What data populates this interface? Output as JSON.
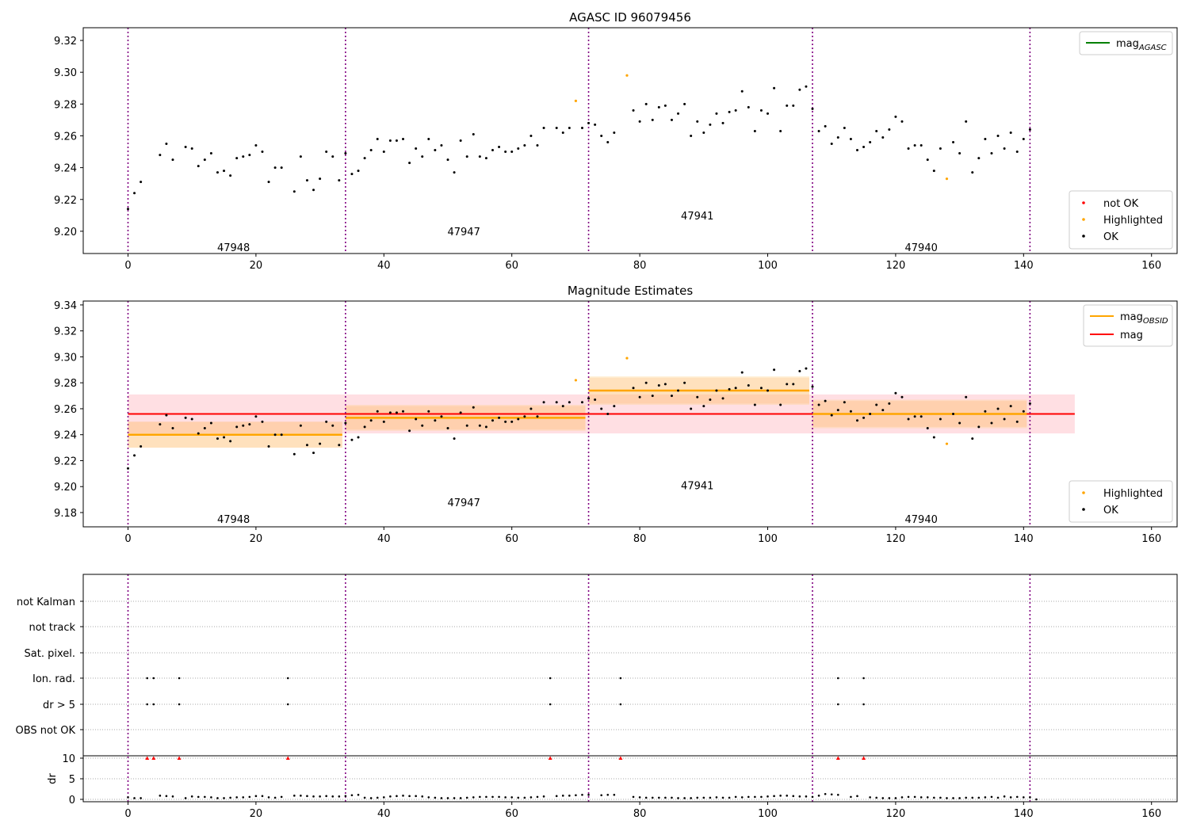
{
  "figure": {
    "title_top": "AGASC ID 96079456",
    "title_mid": "Magnitude Estimates"
  },
  "chart_data": [
    {
      "type": "scatter",
      "title": "AGASC ID 96079456",
      "xlim": [
        -7,
        164
      ],
      "ylim": [
        9.186,
        9.328
      ],
      "x_ticks": [
        0,
        20,
        40,
        60,
        80,
        100,
        120,
        140,
        160
      ],
      "y_ticks": [
        9.2,
        9.22,
        9.24,
        9.26,
        9.28,
        9.3,
        9.32
      ],
      "obsid_boundaries": [
        0,
        34,
        72,
        107,
        141
      ],
      "obsid_labels": [
        {
          "x": 16.5,
          "y": 9.19,
          "text": "47948"
        },
        {
          "x": 52.5,
          "y": 9.2,
          "text": "47947"
        },
        {
          "x": 89,
          "y": 9.21,
          "text": "47941"
        },
        {
          "x": 124,
          "y": 9.19,
          "text": "47940"
        }
      ],
      "legend_lines": [
        {
          "name": "mag",
          "sub": "AGASC",
          "color": "#008000"
        }
      ],
      "legend_points": [
        {
          "name": "not OK",
          "color": "#ff0000"
        },
        {
          "name": "Highlighted",
          "color": "#ffa500"
        },
        {
          "name": "OK",
          "color": "#000000"
        }
      ],
      "highlighted": [
        [
          70,
          9.282
        ],
        [
          78,
          9.298
        ],
        [
          128,
          9.233
        ]
      ]
    },
    {
      "type": "scatter",
      "title": "Magnitude Estimates",
      "xlim": [
        -7,
        164
      ],
      "ylim": [
        9.169,
        9.343
      ],
      "x_ticks": [
        0,
        20,
        40,
        60,
        80,
        100,
        120,
        140,
        160
      ],
      "y_ticks": [
        9.18,
        9.2,
        9.22,
        9.24,
        9.26,
        9.28,
        9.3,
        9.32,
        9.34
      ],
      "obsid_boundaries": [
        0,
        34,
        72,
        107,
        141
      ],
      "obsid_labels": [
        {
          "x": 16.5,
          "y": 9.175,
          "text": "47948"
        },
        {
          "x": 52.5,
          "y": 9.188,
          "text": "47947"
        },
        {
          "x": 89,
          "y": 9.201,
          "text": "47941"
        },
        {
          "x": 124,
          "y": 9.175,
          "text": "47940"
        }
      ],
      "mag": {
        "value": 9.256,
        "x0": 0,
        "x1": 148,
        "band": [
          9.241,
          9.271
        ],
        "color": "#ff0000"
      },
      "obsid_mags": [
        {
          "x0": 0,
          "x1": 33.5,
          "value": 9.24,
          "band_lo": [
            9.23,
            9.25
          ],
          "band_hi": [
            9.23,
            9.25
          ]
        },
        {
          "x0": 34,
          "x1": 71.5,
          "value": 9.253,
          "band_lo": [
            9.243,
            9.263
          ],
          "band_hi": [
            9.244,
            9.262
          ]
        },
        {
          "x0": 72,
          "x1": 106.5,
          "value": 9.274,
          "band_lo": [
            9.263,
            9.285
          ],
          "band_hi": [
            9.264,
            9.284
          ]
        },
        {
          "x0": 107,
          "x1": 140.5,
          "value": 9.256,
          "band_lo": [
            9.245,
            9.267
          ],
          "band_hi": [
            9.246,
            9.266
          ]
        }
      ],
      "legend_lines": [
        {
          "name": "mag",
          "sub": "OBSID",
          "color": "#ffa500"
        },
        {
          "name": "mag",
          "sub": "",
          "color": "#ff0000"
        }
      ],
      "legend_points": [
        {
          "name": "Highlighted",
          "color": "#ffa500"
        },
        {
          "name": "OK",
          "color": "#000000"
        }
      ],
      "highlighted": [
        [
          70,
          9.282
        ],
        [
          78,
          9.299
        ],
        [
          128,
          9.233
        ]
      ]
    },
    {
      "type": "scatter",
      "title": "",
      "flag_labels": [
        "OBS not OK",
        "dr > 5",
        "Ion. rad.",
        "Sat. pixel.",
        "not track",
        "not Kalman"
      ],
      "flag_points": {
        "dr > 5": [
          3,
          4,
          8,
          25,
          66,
          77,
          111,
          115
        ],
        "Ion. rad.": [
          3,
          4,
          8,
          25,
          66,
          77,
          111,
          115
        ]
      },
      "dr_ylabel": "dr",
      "dr_ticks": [
        0,
        5,
        10
      ],
      "dr_clip_markers": [
        3,
        4,
        8,
        25,
        66,
        77,
        111,
        115
      ],
      "x_ticks": [
        0,
        20,
        40,
        60,
        80,
        100,
        120,
        140,
        160
      ],
      "obsid_boundaries": [
        0,
        34,
        72,
        107,
        141
      ]
    }
  ],
  "series": {
    "mags": [
      9.214,
      9.224,
      9.231,
      null,
      null,
      9.248,
      9.255,
      9.245,
      null,
      9.253,
      9.252,
      9.241,
      9.245,
      9.249,
      9.237,
      9.238,
      9.235,
      9.246,
      9.247,
      9.248,
      9.254,
      9.25,
      9.231,
      9.24,
      9.24,
      null,
      9.225,
      9.247,
      9.232,
      9.226,
      9.233,
      9.25,
      9.247,
      9.232,
      9.249,
      9.236,
      9.238,
      9.246,
      9.251,
      9.258,
      9.25,
      9.257,
      9.257,
      9.258,
      9.243,
      9.252,
      9.247,
      9.258,
      9.251,
      9.254,
      9.245,
      9.237,
      9.257,
      9.247,
      9.261,
      9.247,
      9.246,
      9.251,
      9.253,
      9.25,
      9.25,
      9.252,
      9.254,
      9.26,
      9.254,
      9.265,
      null,
      9.265,
      9.262,
      9.265,
      null,
      9.265,
      9.268,
      9.267,
      9.26,
      9.256,
      9.262,
      null,
      null,
      9.276,
      9.269,
      9.28,
      9.27,
      9.278,
      9.279,
      9.27,
      9.274,
      9.28,
      9.26,
      9.269,
      9.262,
      9.267,
      9.274,
      9.268,
      9.275,
      9.276,
      9.288,
      9.278,
      9.263,
      9.276,
      9.274,
      9.29,
      9.263,
      9.279,
      9.279,
      9.289,
      9.291,
      9.277,
      9.263,
      9.266,
      9.255,
      9.259,
      9.265,
      9.258,
      9.251,
      9.253,
      9.256,
      9.263,
      9.259,
      9.264,
      9.272,
      9.269,
      9.252,
      9.254,
      9.254,
      9.245,
      9.238,
      9.252,
      null,
      9.256,
      9.249,
      9.269,
      9.237,
      9.246,
      9.258,
      9.249,
      9.26,
      9.252,
      9.262,
      9.25,
      9.258,
      9.264
    ],
    "dr": [
      0.5,
      0.3,
      0.3,
      null,
      null,
      0.9,
      0.8,
      0.7,
      null,
      0.3,
      0.7,
      0.6,
      0.6,
      0.5,
      0.3,
      0.3,
      0.4,
      0.5,
      0.5,
      0.6,
      0.8,
      0.8,
      0.5,
      0.4,
      0.6,
      null,
      0.9,
      0.9,
      0.8,
      0.7,
      0.7,
      0.8,
      0.7,
      0.7,
      0.8,
      1.0,
      1.1,
      0.4,
      0.3,
      0.4,
      0.5,
      0.7,
      0.8,
      0.9,
      0.8,
      0.8,
      0.7,
      0.5,
      0.4,
      0.3,
      0.3,
      0.3,
      0.3,
      0.4,
      0.5,
      0.6,
      0.6,
      0.6,
      0.6,
      0.5,
      0.5,
      0.4,
      0.4,
      0.5,
      0.6,
      0.7,
      null,
      0.8,
      0.9,
      0.9,
      1.0,
      1.1,
      1.1,
      null,
      1.0,
      1.1,
      1.1,
      null,
      null,
      0.6,
      0.5,
      0.4,
      0.4,
      0.4,
      0.4,
      0.4,
      0.3,
      0.3,
      0.3,
      0.4,
      0.4,
      0.4,
      0.5,
      0.4,
      0.4,
      0.6,
      0.5,
      0.6,
      0.6,
      0.6,
      0.7,
      0.8,
      0.9,
      0.9,
      0.8,
      0.7,
      0.7,
      0.6,
      0.9,
      1.3,
      1.2,
      1.1,
      null,
      0.6,
      0.8,
      null,
      0.5,
      0.4,
      0.3,
      0.3,
      0.3,
      0.5,
      0.6,
      0.6,
      0.5,
      0.5,
      0.4,
      0.4,
      0.3,
      0.3,
      0.3,
      0.4,
      0.4,
      0.4,
      0.5,
      0.6,
      0.4,
      0.7,
      0.5,
      0.6,
      0.5,
      0.5,
      0.0
    ]
  }
}
